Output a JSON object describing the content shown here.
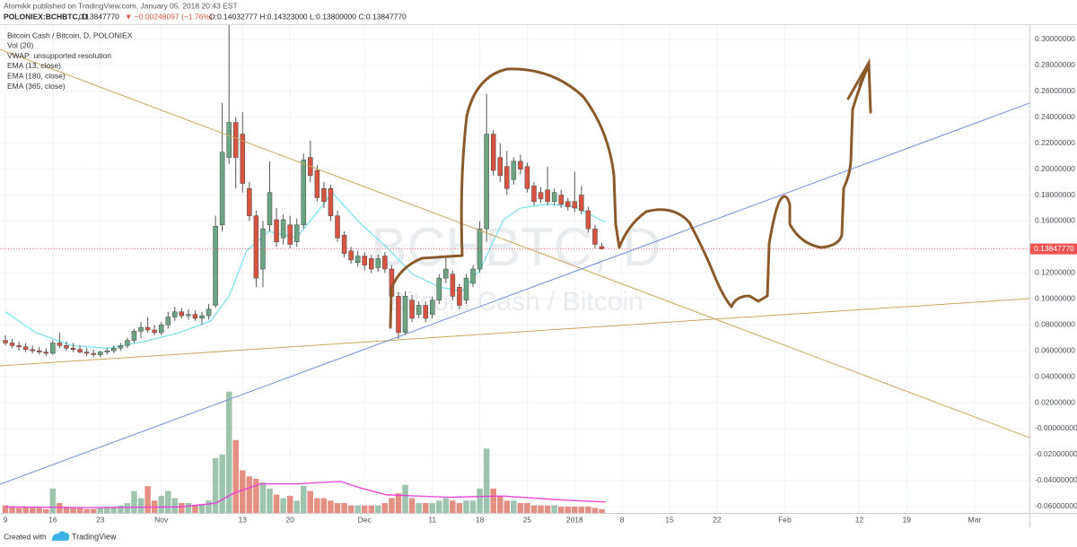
{
  "header": {
    "publisher": "Atomikk published on TradingView.com, January 05, 2018 20:43 EST",
    "symbol": "POLONIEX:BCHBTC, D",
    "price": "0.13847770",
    "change": "▼ −0.00248097 (−1.76%)",
    "ohlc": "O:0.14032777 H:0.14323000 L:0.13800000 C:0.13847770"
  },
  "legend": [
    "Bitcoin Cash / Bitcoin, D, POLONIEX",
    "Vol (20)",
    "VWAP: unsupported resolution",
    "EMA (13, close)",
    "EMA (180, close)",
    "EMA (365, close)"
  ],
  "watermark": {
    "symbol": "BCHBTC, D",
    "name": "Bitcoin Cash / Bitcoin"
  },
  "footer": {
    "created": "Created with",
    "brand": "TradingView"
  },
  "chart_data": {
    "type": "candlestick",
    "up_color": "#6ba583",
    "down_color": "#d75442",
    "grid": true,
    "xlim": [
      -0.795,
      151.1
    ],
    "ylim": [
      -0.065,
      0.311
    ],
    "volume_ylim": [
      0,
      403
    ],
    "xticks": [
      {
        "value": 0,
        "label": "9"
      },
      {
        "value": 7,
        "label": "16"
      },
      {
        "value": 14,
        "label": "23"
      },
      {
        "value": 23,
        "label": "Nov"
      },
      {
        "value": 35,
        "label": "13"
      },
      {
        "value": 42,
        "label": "20"
      },
      {
        "value": 53,
        "label": "Dec"
      },
      {
        "value": 63,
        "label": "11"
      },
      {
        "value": 70,
        "label": "18"
      },
      {
        "value": 77,
        "label": "25"
      },
      {
        "value": 84,
        "label": "2018"
      },
      {
        "value": 91,
        "label": "8"
      },
      {
        "value": 98,
        "label": "15"
      },
      {
        "value": 105,
        "label": "22"
      },
      {
        "value": 115,
        "label": "Feb"
      },
      {
        "value": 126,
        "label": "12"
      },
      {
        "value": 133,
        "label": "19"
      },
      {
        "value": 143,
        "label": "Mar"
      }
    ],
    "yticks": [
      {
        "value": 0.3,
        "label": "0.30000000"
      },
      {
        "value": 0.28,
        "label": "0.28000000"
      },
      {
        "value": 0.26,
        "label": "0.26000000"
      },
      {
        "value": 0.24,
        "label": "0.24000000"
      },
      {
        "value": 0.22,
        "label": "0.22000000"
      },
      {
        "value": 0.2,
        "label": "0.20000000"
      },
      {
        "value": 0.18,
        "label": "0.18000000"
      },
      {
        "value": 0.16,
        "label": "0.16000000"
      },
      {
        "value": 0.12,
        "label": "0.12000000"
      },
      {
        "value": 0.1,
        "label": "0.10000000"
      },
      {
        "value": 0.08,
        "label": "0.08000000"
      },
      {
        "value": 0.06,
        "label": "0.06000000"
      },
      {
        "value": 0.04,
        "label": "0.04000000"
      },
      {
        "value": 0.02,
        "label": "0.02000000"
      },
      {
        "value": 0,
        "label": "-0.00000000"
      },
      {
        "value": -0.02,
        "label": "-0.02000000"
      },
      {
        "value": -0.04,
        "label": "-0.04000000"
      },
      {
        "value": -0.06,
        "label": "-0.06000000"
      }
    ],
    "last_price": {
      "value": 0.1384777,
      "label": "0.13847770",
      "color": "#ef5350"
    },
    "candles": {
      "x": [
        0,
        1,
        2,
        3,
        4,
        5,
        6,
        7,
        8,
        9,
        10,
        11,
        12,
        13,
        14,
        15,
        16,
        17,
        18,
        19,
        20,
        21,
        22,
        23,
        24,
        25,
        26,
        27,
        28,
        29,
        30,
        31,
        32,
        33,
        34,
        35,
        36,
        37,
        38,
        39,
        40,
        41,
        42,
        43,
        44,
        45,
        46,
        47,
        48,
        49,
        50,
        51,
        52,
        53,
        54,
        55,
        56,
        57,
        58,
        59,
        60,
        61,
        62,
        63,
        64,
        65,
        66,
        67,
        68,
        69,
        70,
        71,
        72,
        73,
        74,
        75,
        76,
        77,
        78,
        79,
        80,
        81,
        82,
        83,
        84,
        85,
        86,
        87,
        88
      ],
      "open": [
        0.068,
        0.066,
        0.064,
        0.063,
        0.061,
        0.06,
        0.059,
        0.058,
        0.066,
        0.064,
        0.062,
        0.061,
        0.059,
        0.058,
        0.057,
        0.059,
        0.06,
        0.062,
        0.064,
        0.068,
        0.075,
        0.078,
        0.076,
        0.074,
        0.08,
        0.086,
        0.09,
        0.087,
        0.088,
        0.085,
        0.087,
        0.095,
        0.157,
        0.209,
        0.236,
        0.227,
        0.185,
        0.164,
        0.123,
        0.157,
        0.161,
        0.147,
        0.157,
        0.144,
        0.157,
        0.209,
        0.199,
        0.185,
        0.185,
        0.164,
        0.149,
        0.137,
        0.128,
        0.133,
        0.131,
        0.124,
        0.133,
        0.123,
        0.102,
        0.074,
        0.099,
        0.088,
        0.095,
        0.088,
        0.099,
        0.116,
        0.119,
        0.109,
        0.099,
        0.112,
        0.123,
        0.154,
        0.227,
        0.209,
        0.202,
        0.192,
        0.206,
        0.202,
        0.187,
        0.182,
        0.184,
        0.175,
        0.18,
        0.175,
        0.175,
        0.18,
        0.168,
        0.154,
        0.14032777
      ],
      "high": [
        0.072,
        0.069,
        0.067,
        0.066,
        0.064,
        0.063,
        0.062,
        0.068,
        0.074,
        0.067,
        0.066,
        0.064,
        0.062,
        0.061,
        0.06,
        0.062,
        0.064,
        0.066,
        0.07,
        0.077,
        0.082,
        0.086,
        0.08,
        0.082,
        0.09,
        0.094,
        0.093,
        0.092,
        0.091,
        0.09,
        0.096,
        0.164,
        0.251,
        0.33,
        0.24,
        0.244,
        0.19,
        0.168,
        0.16,
        0.206,
        0.17,
        0.165,
        0.164,
        0.162,
        0.212,
        0.222,
        0.203,
        0.19,
        0.188,
        0.168,
        0.152,
        0.14,
        0.137,
        0.136,
        0.134,
        0.134,
        0.136,
        0.126,
        0.105,
        0.106,
        0.103,
        0.098,
        0.098,
        0.102,
        0.119,
        0.133,
        0.122,
        0.112,
        0.119,
        0.126,
        0.16,
        0.258,
        0.23,
        0.22,
        0.214,
        0.209,
        0.211,
        0.205,
        0.19,
        0.186,
        0.202,
        0.185,
        0.184,
        0.178,
        0.198,
        0.187,
        0.171,
        0.157,
        0.14323
      ],
      "low": [
        0.064,
        0.062,
        0.06,
        0.059,
        0.058,
        0.057,
        0.056,
        0.057,
        0.062,
        0.06,
        0.059,
        0.058,
        0.056,
        0.055,
        0.055,
        0.057,
        0.058,
        0.06,
        0.062,
        0.066,
        0.07,
        0.074,
        0.072,
        0.072,
        0.077,
        0.083,
        0.085,
        0.084,
        0.083,
        0.08,
        0.084,
        0.093,
        0.152,
        0.204,
        0.185,
        0.182,
        0.16,
        0.109,
        0.109,
        0.152,
        0.14,
        0.142,
        0.139,
        0.14,
        0.154,
        0.19,
        0.175,
        0.17,
        0.16,
        0.144,
        0.132,
        0.127,
        0.125,
        0.122,
        0.12,
        0.121,
        0.12,
        0.099,
        0.069,
        0.072,
        0.082,
        0.085,
        0.082,
        0.085,
        0.096,
        0.112,
        0.099,
        0.092,
        0.096,
        0.109,
        0.12,
        0.144,
        0.195,
        0.19,
        0.18,
        0.188,
        0.196,
        0.182,
        0.172,
        0.174,
        0.172,
        0.172,
        0.17,
        0.168,
        0.167,
        0.165,
        0.151,
        0.139,
        0.138
      ],
      "close": [
        0.066,
        0.064,
        0.063,
        0.061,
        0.06,
        0.059,
        0.058,
        0.066,
        0.064,
        0.062,
        0.061,
        0.059,
        0.058,
        0.057,
        0.059,
        0.06,
        0.062,
        0.064,
        0.068,
        0.075,
        0.078,
        0.076,
        0.074,
        0.08,
        0.086,
        0.09,
        0.087,
        0.088,
        0.085,
        0.087,
        0.092,
        0.156,
        0.213,
        0.236,
        0.209,
        0.189,
        0.164,
        0.116,
        0.154,
        0.182,
        0.144,
        0.161,
        0.142,
        0.157,
        0.207,
        0.195,
        0.178,
        0.175,
        0.164,
        0.147,
        0.135,
        0.13,
        0.133,
        0.126,
        0.123,
        0.131,
        0.123,
        0.102,
        0.074,
        0.102,
        0.085,
        0.095,
        0.085,
        0.099,
        0.116,
        0.123,
        0.102,
        0.095,
        0.116,
        0.123,
        0.154,
        0.227,
        0.199,
        0.195,
        0.185,
        0.206,
        0.2,
        0.185,
        0.175,
        0.177,
        0.175,
        0.182,
        0.173,
        0.171,
        0.17,
        0.168,
        0.154,
        0.142,
        0.1384777
      ],
      "volume": [
        6,
        5,
        4,
        5,
        4,
        4,
        3,
        20,
        8,
        5,
        4,
        4,
        3,
        3,
        4,
        5,
        5,
        6,
        8,
        18,
        12,
        22,
        10,
        14,
        18,
        12,
        8,
        8,
        6,
        7,
        10,
        45,
        48,
        100,
        60,
        35,
        30,
        28,
        25,
        20,
        15,
        12,
        14,
        10,
        22,
        18,
        12,
        12,
        10,
        8,
        8,
        6,
        6,
        6,
        6,
        6,
        8,
        12,
        16,
        23,
        12,
        8,
        8,
        8,
        10,
        12,
        10,
        8,
        10,
        10,
        20,
        53,
        20,
        14,
        10,
        10,
        8,
        8,
        6,
        6,
        6,
        6,
        5,
        5,
        5,
        5,
        5,
        4,
        3
      ]
    },
    "ema": {
      "color": "#7fe3ec",
      "x": [
        0,
        4.5,
        9.8,
        15.1,
        20.4,
        25.7,
        30.3,
        33,
        35.6,
        38.9,
        42.9,
        45.6,
        48.2,
        52.2,
        56.2,
        60.1,
        64.1,
        67.4,
        70.1,
        73.5,
        76,
        80,
        84,
        88.6
      ],
      "values": [
        0.09,
        0.074,
        0.064,
        0.062,
        0.067,
        0.074,
        0.083,
        0.102,
        0.137,
        0.152,
        0.147,
        0.164,
        0.182,
        0.159,
        0.14,
        0.119,
        0.109,
        0.106,
        0.123,
        0.161,
        0.17,
        0.173,
        0.171,
        0.159
      ]
    },
    "volume_ma": {
      "color": "#e93fd6",
      "x": [
        0,
        12.5,
        25.7,
        31,
        33.6,
        37.6,
        42.9,
        49.5,
        52.2,
        56.2,
        65.4,
        73.4,
        81.3,
        88.6
      ],
      "values": [
        5,
        4.4,
        5,
        8,
        16,
        24,
        24,
        26,
        21,
        15,
        13,
        14,
        11,
        9
      ]
    }
  }
}
